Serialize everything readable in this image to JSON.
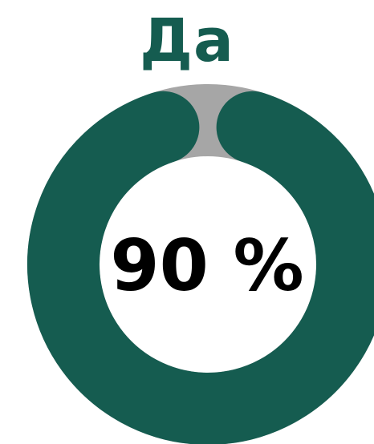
{
  "chart_data": {
    "type": "pie",
    "variant": "donut",
    "title": "Да",
    "center_label": "90 %",
    "slices": [
      {
        "value": 90,
        "color": "#155C50"
      },
      {
        "value": 10,
        "color": "#A6A6A6"
      }
    ]
  },
  "colors": {
    "accent": "#155C50",
    "remainder": "#A6A6A6",
    "label": "#000000"
  }
}
